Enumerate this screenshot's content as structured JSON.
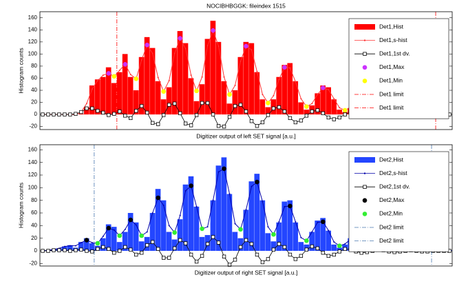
{
  "chart_data": [
    {
      "type": "histogram",
      "title": "NOCIBHBGGK: fileindex 1515",
      "xlabel": "Digitizer output of left SET signal [a.u.]",
      "ylabel": "Histogram counts",
      "xlim": [
        0,
        600
      ],
      "ylim": [
        -25,
        170
      ],
      "yticks": [
        -20,
        0,
        20,
        40,
        60,
        80,
        100,
        120,
        140,
        160
      ],
      "legend": "upper right",
      "bins": [
        0,
        8,
        16,
        24,
        32,
        40,
        48,
        56,
        64,
        72,
        80,
        88,
        96,
        104,
        112,
        120,
        128,
        136,
        144,
        152,
        160,
        168,
        176,
        184,
        192,
        200,
        208,
        216,
        224,
        232,
        240,
        248,
        256,
        264,
        272,
        280,
        288,
        296,
        304,
        312,
        320,
        328,
        336,
        344,
        352,
        360,
        368,
        376,
        384,
        392,
        400,
        408,
        416,
        424,
        432,
        440,
        448,
        456,
        464,
        472,
        480,
        488,
        496,
        504,
        512,
        520,
        528,
        536,
        544,
        552,
        560,
        568,
        576,
        584,
        592,
        600
      ],
      "x": [
        4,
        12,
        20,
        28,
        36,
        44,
        52,
        60,
        68,
        76,
        84,
        92,
        100,
        108,
        116,
        124,
        132,
        140,
        148,
        156,
        164,
        172,
        180,
        188,
        196,
        204,
        212,
        220,
        228,
        236,
        244,
        252,
        260,
        268,
        276,
        284,
        292,
        300,
        308,
        316,
        324,
        332,
        340,
        348,
        356,
        364,
        372,
        380,
        388,
        396,
        404,
        412,
        420,
        428,
        436,
        444,
        452,
        460,
        468,
        476,
        484,
        492,
        500,
        508,
        516,
        524,
        532,
        540,
        548,
        556,
        564,
        572,
        580,
        588,
        596
      ],
      "series": [
        {
          "name": "Det1,Hist",
          "kind": "bar",
          "color": "#ff0000",
          "values": [
            0,
            0,
            0,
            0,
            0,
            0,
            0,
            1,
            12,
            48,
            58,
            62,
            78,
            52,
            70,
            100,
            62,
            40,
            95,
            128,
            110,
            55,
            25,
            45,
            110,
            138,
            118,
            60,
            22,
            50,
            125,
            155,
            120,
            55,
            18,
            40,
            95,
            120,
            118,
            70,
            25,
            12,
            25,
            62,
            82,
            85,
            55,
            20,
            8,
            15,
            35,
            48,
            45,
            25,
            8,
            4,
            10,
            22,
            28,
            24,
            12,
            4,
            3,
            10,
            16,
            14,
            6,
            2,
            2,
            5,
            6,
            4,
            1,
            0,
            0
          ]
        },
        {
          "name": "Det1,s-hist",
          "kind": "line",
          "marker": "dot",
          "color": "#ff3333",
          "values": [
            0,
            0,
            0,
            0,
            0,
            0,
            0,
            4,
            18,
            42,
            56,
            65,
            68,
            63,
            73,
            83,
            66,
            59,
            90,
            115,
            101,
            61,
            38,
            56,
            101,
            126,
            109,
            65,
            39,
            62,
            114,
            139,
            113,
            62,
            33,
            48,
            88,
            113,
            107,
            71,
            33,
            19,
            31,
            58,
            78,
            77,
            54,
            26,
            13,
            18,
            33,
            44,
            41,
            26,
            11,
            7,
            12,
            21,
            26,
            22,
            13,
            6,
            5,
            10,
            14,
            13,
            7,
            3,
            3,
            5,
            5,
            4,
            2,
            0,
            0
          ]
        },
        {
          "name": "Det1,1st dv.",
          "kind": "line",
          "marker": "square",
          "color": "#000000",
          "values": [
            0,
            0,
            0,
            0,
            0,
            0,
            1,
            4,
            10,
            10,
            6,
            3,
            -1,
            1,
            5,
            -2,
            -6,
            6,
            14,
            3,
            -14,
            -16,
            -1,
            16,
            18,
            2,
            -15,
            -18,
            -1,
            19,
            19,
            0,
            -19,
            -20,
            -4,
            14,
            16,
            5,
            -11,
            -19,
            -13,
            -1,
            10,
            12,
            5,
            -6,
            -13,
            -10,
            -2,
            5,
            7,
            2,
            -5,
            -8,
            -5,
            0,
            4,
            4,
            0,
            -3,
            -4,
            -2,
            1,
            2,
            1,
            -2,
            -3,
            -1,
            1,
            0,
            0,
            -1,
            -1,
            0,
            0
          ]
        },
        {
          "name": "Det1,Max",
          "kind": "scatter",
          "color": "#cc33ff",
          "x": [
            100,
            124,
            156,
            204,
            252,
            300,
            356,
            412,
            468,
            516,
            564
          ],
          "values": [
            68,
            83,
            115,
            126,
            139,
            113,
            78,
            44,
            26,
            14,
            5
          ]
        },
        {
          "name": "Det1,Min",
          "kind": "scatter",
          "color": "#ffff00",
          "x": [
            108,
            140,
            180,
            228,
            276,
            332,
            388,
            444,
            500,
            540,
            580
          ],
          "values": [
            63,
            59,
            38,
            39,
            33,
            19,
            13,
            7,
            5,
            3,
            2
          ]
        }
      ],
      "limits": [
        {
          "name": "Det1 limit",
          "color": "#ff0000",
          "x": 112
        },
        {
          "name": "Det1 limit",
          "color": "#ff0000",
          "x": 576
        }
      ]
    },
    {
      "type": "histogram",
      "xlabel": "Digitizer output of right SET signal [a.u.]",
      "ylabel": "Histogram counts",
      "xlim": [
        0,
        600
      ],
      "ylim": [
        -24,
        168
      ],
      "yticks": [
        -20,
        0,
        20,
        40,
        60,
        80,
        100,
        120,
        140,
        160
      ],
      "legend": "upper right",
      "bins": [
        0,
        8,
        16,
        24,
        32,
        40,
        48,
        56,
        64,
        72,
        80,
        88,
        96,
        104,
        112,
        120,
        128,
        136,
        144,
        152,
        160,
        168,
        176,
        184,
        192,
        200,
        208,
        216,
        224,
        232,
        240,
        248,
        256,
        264,
        272,
        280,
        288,
        296,
        304,
        312,
        320,
        328,
        336,
        344,
        352,
        360,
        368,
        376,
        384,
        392,
        400,
        408,
        416,
        424,
        432,
        440,
        448,
        456,
        464,
        472,
        480,
        488,
        496,
        504,
        512,
        520,
        528,
        536,
        544,
        552,
        560,
        568,
        576,
        584,
        592,
        600
      ],
      "x": [
        4,
        12,
        20,
        28,
        36,
        44,
        52,
        60,
        68,
        76,
        84,
        92,
        100,
        108,
        116,
        124,
        132,
        140,
        148,
        156,
        164,
        172,
        180,
        188,
        196,
        204,
        212,
        220,
        228,
        236,
        244,
        252,
        260,
        268,
        276,
        284,
        292,
        300,
        308,
        316,
        324,
        332,
        340,
        348,
        356,
        364,
        372,
        380,
        388,
        396,
        404,
        412,
        420,
        428,
        436,
        444,
        452,
        460,
        468,
        476,
        484,
        492,
        500,
        508,
        516,
        524,
        532,
        540,
        548,
        556,
        564,
        572,
        580,
        588,
        596
      ],
      "series": [
        {
          "name": "Det2,Hist",
          "kind": "bar",
          "color": "#2446ff",
          "values": [
            0,
            1,
            2,
            4,
            7,
            9,
            5,
            14,
            20,
            12,
            8,
            20,
            42,
            38,
            14,
            30,
            60,
            45,
            15,
            22,
            60,
            98,
            80,
            30,
            18,
            50,
            105,
            118,
            70,
            22,
            25,
            80,
            135,
            148,
            90,
            30,
            20,
            65,
            110,
            122,
            80,
            28,
            15,
            45,
            78,
            80,
            45,
            14,
            10,
            30,
            48,
            52,
            32,
            10,
            5,
            10,
            20,
            22,
            12,
            4,
            3,
            6,
            11,
            12,
            7,
            2,
            2,
            4,
            7,
            6,
            2,
            1,
            2,
            3,
            1
          ]
        },
        {
          "name": "Det2,s-hist",
          "kind": "line",
          "marker": "dot",
          "color": "#0000aa",
          "values": [
            0,
            1,
            2,
            4,
            7,
            8,
            8,
            13,
            17,
            13,
            12,
            23,
            36,
            33,
            24,
            34,
            49,
            41,
            24,
            30,
            60,
            84,
            72,
            40,
            29,
            56,
            95,
            103,
            70,
            35,
            38,
            80,
            125,
            130,
            90,
            43,
            34,
            65,
            102,
            109,
            78,
            38,
            26,
            46,
            70,
            71,
            46,
            21,
            16,
            30,
            45,
            46,
            32,
            14,
            8,
            11,
            18,
            19,
            13,
            6,
            4,
            7,
            10,
            11,
            7,
            3,
            3,
            4,
            6,
            5,
            3,
            2,
            2,
            2,
            1
          ]
        },
        {
          "name": "Det2,1st dv.",
          "kind": "line",
          "marker": "square",
          "color": "#000000",
          "values": [
            0,
            0,
            1,
            1,
            1,
            0,
            1,
            2,
            0,
            -1,
            3,
            6,
            3,
            -3,
            0,
            6,
            2,
            -6,
            -3,
            9,
            14,
            3,
            -11,
            -11,
            4,
            17,
            12,
            -6,
            -17,
            -8,
            11,
            22,
            13,
            -9,
            -22,
            -14,
            6,
            17,
            11,
            -6,
            -18,
            -13,
            2,
            11,
            6,
            -6,
            -13,
            -8,
            2,
            7,
            4,
            -3,
            -8,
            -6,
            -1,
            3,
            2,
            -1,
            -3,
            -2,
            0,
            2,
            1,
            -1,
            -2,
            -1,
            0,
            1,
            0,
            -1,
            -1,
            0,
            0,
            0,
            0
          ]
        },
        {
          "name": "Det2,Max",
          "kind": "scatter",
          "color": "#000000",
          "x": [
            68,
            100,
            132,
            172,
            220,
            268,
            316,
            364,
            412,
            460,
            508,
            548
          ],
          "values": [
            17,
            36,
            49,
            84,
            103,
            130,
            109,
            71,
            46,
            19,
            11,
            6
          ]
        },
        {
          "name": "Det2,Min",
          "kind": "scatter",
          "color": "#33ee33",
          "x": [
            84,
            116,
            148,
            196,
            236,
            292,
            340,
            388,
            436,
            484,
            524,
            572
          ],
          "values": [
            12,
            24,
            24,
            29,
            35,
            34,
            26,
            16,
            8,
            4,
            3,
            2
          ]
        }
      ],
      "limits": [
        {
          "name": "Det2 limit",
          "color": "#4a78b0",
          "x": 79
        },
        {
          "name": "Det2 limit",
          "color": "#4a78b0",
          "x": 570
        }
      ]
    }
  ]
}
